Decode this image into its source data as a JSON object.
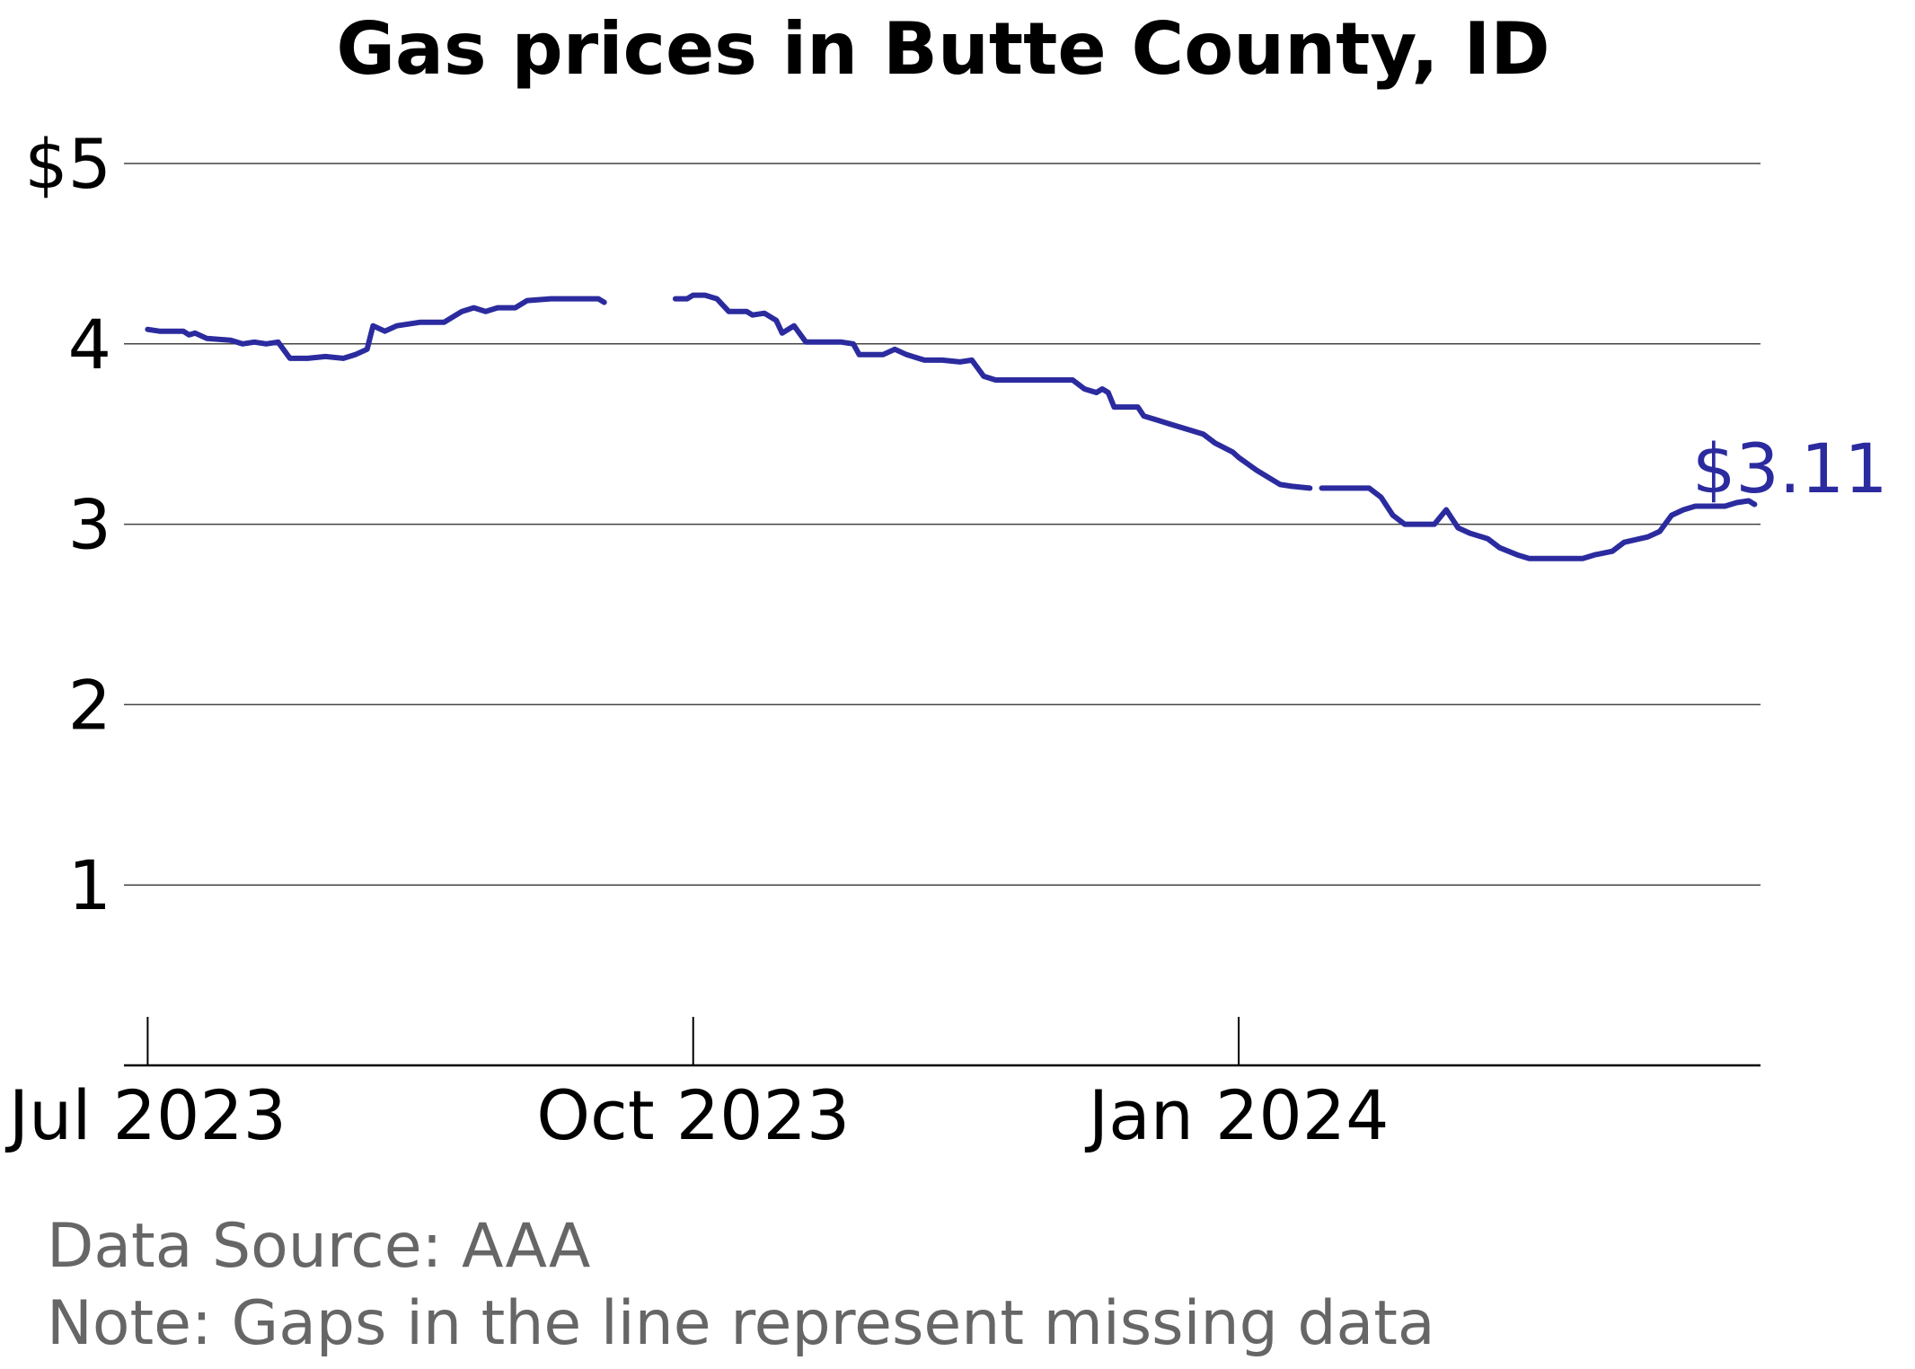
{
  "chart_data": {
    "type": "line",
    "title": "Gas prices in Butte County, ID",
    "xlabel": "",
    "ylabel": "",
    "ylim": [
      0,
      5
    ],
    "xlim": [
      "2023-06-27",
      "2024-03-29"
    ],
    "y_ticks": [
      {
        "value": 5,
        "label": "$5"
      },
      {
        "value": 4,
        "label": "4"
      },
      {
        "value": 3,
        "label": "3"
      },
      {
        "value": 2,
        "label": "2"
      },
      {
        "value": 1,
        "label": "1"
      }
    ],
    "x_ticks": [
      {
        "date": "2023-07-01",
        "label": "Jul 2023"
      },
      {
        "date": "2023-10-01",
        "label": "Oct 2023"
      },
      {
        "date": "2024-01-01",
        "label": "Jan 2024"
      }
    ],
    "grid": true,
    "line_color": "#2b2b9f",
    "end_label": "$3.11",
    "series": [
      {
        "segments": [
          [
            {
              "x": "2023-07-01",
              "y": 4.08
            },
            {
              "x": "2023-07-03",
              "y": 4.07
            },
            {
              "x": "2023-07-07",
              "y": 4.07
            },
            {
              "x": "2023-07-08",
              "y": 4.05
            },
            {
              "x": "2023-07-09",
              "y": 4.06
            },
            {
              "x": "2023-07-11",
              "y": 4.03
            },
            {
              "x": "2023-07-15",
              "y": 4.02
            },
            {
              "x": "2023-07-17",
              "y": 4.0
            },
            {
              "x": "2023-07-19",
              "y": 4.01
            },
            {
              "x": "2023-07-21",
              "y": 4.0
            },
            {
              "x": "2023-07-23",
              "y": 4.01
            },
            {
              "x": "2023-07-25",
              "y": 3.92
            },
            {
              "x": "2023-07-28",
              "y": 3.92
            },
            {
              "x": "2023-07-31",
              "y": 3.93
            },
            {
              "x": "2023-08-03",
              "y": 3.92
            },
            {
              "x": "2023-08-05",
              "y": 3.94
            },
            {
              "x": "2023-08-07",
              "y": 3.97
            },
            {
              "x": "2023-08-08",
              "y": 4.1
            },
            {
              "x": "2023-08-10",
              "y": 4.07
            },
            {
              "x": "2023-08-12",
              "y": 4.1
            },
            {
              "x": "2023-08-16",
              "y": 4.12
            },
            {
              "x": "2023-08-20",
              "y": 4.12
            },
            {
              "x": "2023-08-21",
              "y": 4.14
            },
            {
              "x": "2023-08-23",
              "y": 4.18
            },
            {
              "x": "2023-08-25",
              "y": 4.2
            },
            {
              "x": "2023-08-27",
              "y": 4.18
            },
            {
              "x": "2023-08-29",
              "y": 4.2
            },
            {
              "x": "2023-09-01",
              "y": 4.2
            },
            {
              "x": "2023-09-03",
              "y": 4.24
            },
            {
              "x": "2023-09-07",
              "y": 4.25
            },
            {
              "x": "2023-09-12",
              "y": 4.25
            },
            {
              "x": "2023-09-15",
              "y": 4.25
            },
            {
              "x": "2023-09-16",
              "y": 4.23
            }
          ],
          [
            {
              "x": "2023-09-28",
              "y": 4.25
            },
            {
              "x": "2023-09-30",
              "y": 4.25
            },
            {
              "x": "2023-10-01",
              "y": 4.27
            },
            {
              "x": "2023-10-03",
              "y": 4.27
            },
            {
              "x": "2023-10-05",
              "y": 4.25
            },
            {
              "x": "2023-10-07",
              "y": 4.18
            },
            {
              "x": "2023-10-10",
              "y": 4.18
            },
            {
              "x": "2023-10-11",
              "y": 4.16
            },
            {
              "x": "2023-10-13",
              "y": 4.17
            },
            {
              "x": "2023-10-15",
              "y": 4.13
            },
            {
              "x": "2023-10-16",
              "y": 4.06
            },
            {
              "x": "2023-10-18",
              "y": 4.1
            },
            {
              "x": "2023-10-20",
              "y": 4.01
            },
            {
              "x": "2023-10-26",
              "y": 4.01
            },
            {
              "x": "2023-10-28",
              "y": 4.0
            },
            {
              "x": "2023-10-29",
              "y": 3.94
            },
            {
              "x": "2023-11-02",
              "y": 3.94
            },
            {
              "x": "2023-11-04",
              "y": 3.97
            },
            {
              "x": "2023-11-06",
              "y": 3.94
            },
            {
              "x": "2023-11-09",
              "y": 3.91
            },
            {
              "x": "2023-11-12",
              "y": 3.91
            },
            {
              "x": "2023-11-15",
              "y": 3.9
            },
            {
              "x": "2023-11-17",
              "y": 3.91
            },
            {
              "x": "2023-11-19",
              "y": 3.82
            },
            {
              "x": "2023-11-21",
              "y": 3.8
            },
            {
              "x": "2023-12-04",
              "y": 3.8
            },
            {
              "x": "2023-12-06",
              "y": 3.75
            },
            {
              "x": "2023-12-08",
              "y": 3.73
            },
            {
              "x": "2023-12-09",
              "y": 3.75
            },
            {
              "x": "2023-12-10",
              "y": 3.73
            },
            {
              "x": "2023-12-11",
              "y": 3.65
            },
            {
              "x": "2023-12-15",
              "y": 3.65
            },
            {
              "x": "2023-12-16",
              "y": 3.6
            },
            {
              "x": "2023-12-18",
              "y": 3.58
            },
            {
              "x": "2023-12-20",
              "y": 3.56
            },
            {
              "x": "2023-12-26",
              "y": 3.5
            },
            {
              "x": "2023-12-28",
              "y": 3.45
            },
            {
              "x": "2023-12-31",
              "y": 3.4
            },
            {
              "x": "2024-01-01",
              "y": 3.37
            },
            {
              "x": "2024-01-04",
              "y": 3.3
            },
            {
              "x": "2024-01-08",
              "y": 3.22
            },
            {
              "x": "2024-01-10",
              "y": 3.21
            },
            {
              "x": "2024-01-13",
              "y": 3.2
            }
          ],
          [
            {
              "x": "2024-01-15",
              "y": 3.2
            },
            {
              "x": "2024-01-23",
              "y": 3.2
            },
            {
              "x": "2024-01-25",
              "y": 3.15
            },
            {
              "x": "2024-01-27",
              "y": 3.05
            },
            {
              "x": "2024-01-29",
              "y": 3.0
            },
            {
              "x": "2024-02-03",
              "y": 3.0
            },
            {
              "x": "2024-02-05",
              "y": 3.08
            },
            {
              "x": "2024-02-07",
              "y": 2.98
            },
            {
              "x": "2024-02-09",
              "y": 2.95
            },
            {
              "x": "2024-02-12",
              "y": 2.92
            },
            {
              "x": "2024-02-14",
              "y": 2.87
            },
            {
              "x": "2024-02-17",
              "y": 2.83
            },
            {
              "x": "2024-02-19",
              "y": 2.81
            },
            {
              "x": "2024-02-25",
              "y": 2.81
            },
            {
              "x": "2024-02-28",
              "y": 2.81
            },
            {
              "x": "2024-03-01",
              "y": 2.83
            },
            {
              "x": "2024-03-04",
              "y": 2.85
            },
            {
              "x": "2024-03-06",
              "y": 2.9
            },
            {
              "x": "2024-03-10",
              "y": 2.93
            },
            {
              "x": "2024-03-12",
              "y": 2.96
            },
            {
              "x": "2024-03-14",
              "y": 3.05
            },
            {
              "x": "2024-03-16",
              "y": 3.08
            },
            {
              "x": "2024-03-18",
              "y": 3.1
            },
            {
              "x": "2024-03-23",
              "y": 3.1
            },
            {
              "x": "2024-03-25",
              "y": 3.12
            },
            {
              "x": "2024-03-27",
              "y": 3.13
            },
            {
              "x": "2024-03-28",
              "y": 3.11
            }
          ]
        ]
      }
    ]
  },
  "footer": {
    "source": "Data Source: AAA",
    "note": "Note: Gaps in the line represent missing data"
  }
}
